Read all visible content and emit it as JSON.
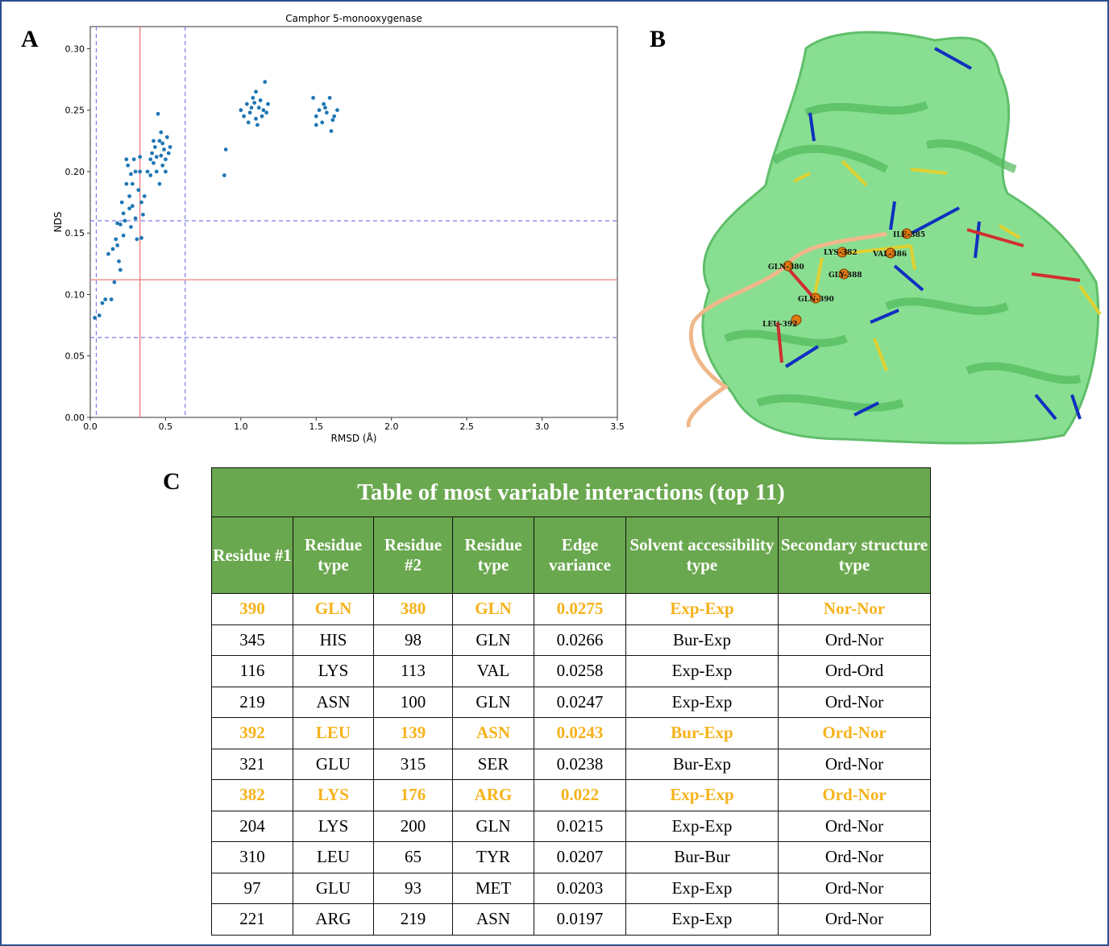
{
  "panels": [
    "A",
    "B",
    "C"
  ],
  "chart_data": {
    "type": "scatter",
    "title": "Camphor 5-monooxygenase",
    "x_label": "RMSD (Å)",
    "y_label": "NDS",
    "color": "#1f77b4",
    "xlim": [
      0,
      3.5
    ],
    "ylim": [
      0,
      0.318
    ],
    "xticks": [
      {
        "value": 0,
        "label": "0.0"
      },
      0.5,
      {
        "value": 1,
        "label": "1.0"
      },
      1.5,
      {
        "value": 2,
        "label": "2.0"
      },
      2.5,
      {
        "value": 3,
        "label": "3.0"
      },
      3.5
    ],
    "yticks": [
      {
        "value": 0,
        "label": "0.00"
      },
      0.05,
      {
        "value": 0.1,
        "label": "0.10"
      },
      0.15,
      {
        "value": 0.2,
        "label": "0.20"
      },
      0.25,
      {
        "value": 0.3,
        "label": "0.30"
      }
    ],
    "reference_lines": [
      {
        "axis": "x",
        "value": 0.33,
        "color": "#e8706e",
        "style": "solid"
      },
      {
        "axis": "y",
        "value": 0.112,
        "color": "#e8706e",
        "style": "solid"
      },
      {
        "axis": "x",
        "value": 0.04,
        "color": "#7b7be8",
        "style": "dashed"
      },
      {
        "axis": "x",
        "value": 0.63,
        "color": "#7b7be8",
        "style": "dashed"
      },
      {
        "axis": "y",
        "value": 0.16,
        "color": "#7b7be8",
        "style": "dashed"
      },
      {
        "axis": "y",
        "value": 0.065,
        "color": "#7b7be8",
        "style": "dashed"
      }
    ],
    "x": [
      0.03,
      0.06,
      0.08,
      0.1,
      0.12,
      0.14,
      0.15,
      0.16,
      0.17,
      0.18,
      0.19,
      0.2,
      0.21,
      0.22,
      0.23,
      0.24,
      0.25,
      0.26,
      0.27,
      0.28,
      0.29,
      0.3,
      0.31,
      0.32,
      0.33,
      0.34,
      0.35,
      0.36,
      0.18,
      0.2,
      0.22,
      0.26,
      0.28,
      0.3,
      0.24,
      0.27,
      0.33,
      0.34,
      0.38,
      0.4,
      0.41,
      0.42,
      0.43,
      0.44,
      0.45,
      0.46,
      0.47,
      0.48,
      0.49,
      0.5,
      0.51,
      0.52,
      0.44,
      0.46,
      0.48,
      0.5,
      0.42,
      0.4,
      0.53,
      0.47,
      0.9,
      0.89,
      1.0,
      1.02,
      1.04,
      1.06,
      1.08,
      1.1,
      1.12,
      1.14,
      1.16,
      1.18,
      1.05,
      1.1,
      1.13,
      1.07,
      1.15,
      1.11,
      1.09,
      1.17,
      1.48,
      1.5,
      1.52,
      1.54,
      1.55,
      1.57,
      1.59,
      1.6,
      1.62,
      1.64,
      1.5,
      1.56,
      1.61
    ],
    "values": [
      0.081,
      0.083,
      0.093,
      0.096,
      0.133,
      0.096,
      0.137,
      0.11,
      0.145,
      0.14,
      0.127,
      0.157,
      0.175,
      0.166,
      0.16,
      0.19,
      0.205,
      0.18,
      0.198,
      0.172,
      0.21,
      0.162,
      0.145,
      0.185,
      0.2,
      0.175,
      0.165,
      0.18,
      0.158,
      0.12,
      0.148,
      0.17,
      0.19,
      0.2,
      0.21,
      0.155,
      0.212,
      0.146,
      0.2,
      0.21,
      0.215,
      0.207,
      0.22,
      0.212,
      0.247,
      0.225,
      0.232,
      0.205,
      0.218,
      0.21,
      0.228,
      0.215,
      0.2,
      0.19,
      0.223,
      0.2,
      0.225,
      0.197,
      0.22,
      0.213,
      0.218,
      0.197,
      0.25,
      0.245,
      0.255,
      0.248,
      0.26,
      0.265,
      0.252,
      0.245,
      0.273,
      0.255,
      0.24,
      0.243,
      0.258,
      0.252,
      0.25,
      0.238,
      0.256,
      0.248,
      0.26,
      0.245,
      0.25,
      0.24,
      0.255,
      0.248,
      0.26,
      0.233,
      0.245,
      0.25,
      0.238,
      0.252,
      0.242
    ]
  },
  "structure": {
    "labels": [
      "ILE-385",
      "LYS-382",
      "VAL-386",
      "GLN-380",
      "GLY-388",
      "GLN-390",
      "LEU-392"
    ]
  },
  "table": {
    "title": "Table of most variable interactions (top 11)",
    "columns": [
      "Residue #1",
      "Residue type",
      "Residue #2",
      "Residue type",
      "Edge variance",
      "Solvent accessibility type",
      "Secondary structure type"
    ],
    "rows": [
      {
        "cells": [
          "390",
          "GLN",
          "380",
          "GLN",
          "0.0275",
          "Exp-Exp",
          "Nor-Nor"
        ],
        "highlight": true
      },
      {
        "cells": [
          "345",
          "HIS",
          "98",
          "GLN",
          "0.0266",
          "Bur-Exp",
          "Ord-Nor"
        ],
        "highlight": false
      },
      {
        "cells": [
          "116",
          "LYS",
          "113",
          "VAL",
          "0.0258",
          "Exp-Exp",
          "Ord-Ord"
        ],
        "highlight": false
      },
      {
        "cells": [
          "219",
          "ASN",
          "100",
          "GLN",
          "0.0247",
          "Exp-Exp",
          "Ord-Nor"
        ],
        "highlight": false
      },
      {
        "cells": [
          "392",
          "LEU",
          "139",
          "ASN",
          "0.0243",
          "Bur-Exp",
          "Ord-Nor"
        ],
        "highlight": true
      },
      {
        "cells": [
          "321",
          "GLU",
          "315",
          "SER",
          "0.0238",
          "Bur-Exp",
          "Ord-Nor"
        ],
        "highlight": false
      },
      {
        "cells": [
          "382",
          "LYS",
          "176",
          "ARG",
          "0.022",
          "Exp-Exp",
          "Ord-Nor"
        ],
        "highlight": true
      },
      {
        "cells": [
          "204",
          "LYS",
          "200",
          "GLN",
          "0.0215",
          "Exp-Exp",
          "Ord-Nor"
        ],
        "highlight": false
      },
      {
        "cells": [
          "310",
          "LEU",
          "65",
          "TYR",
          "0.0207",
          "Bur-Bur",
          "Ord-Nor"
        ],
        "highlight": false
      },
      {
        "cells": [
          "97",
          "GLU",
          "93",
          "MET",
          "0.0203",
          "Exp-Exp",
          "Ord-Nor"
        ],
        "highlight": false
      },
      {
        "cells": [
          "221",
          "ARG",
          "219",
          "ASN",
          "0.0197",
          "Exp-Exp",
          "Ord-Nor"
        ],
        "highlight": false
      }
    ]
  }
}
